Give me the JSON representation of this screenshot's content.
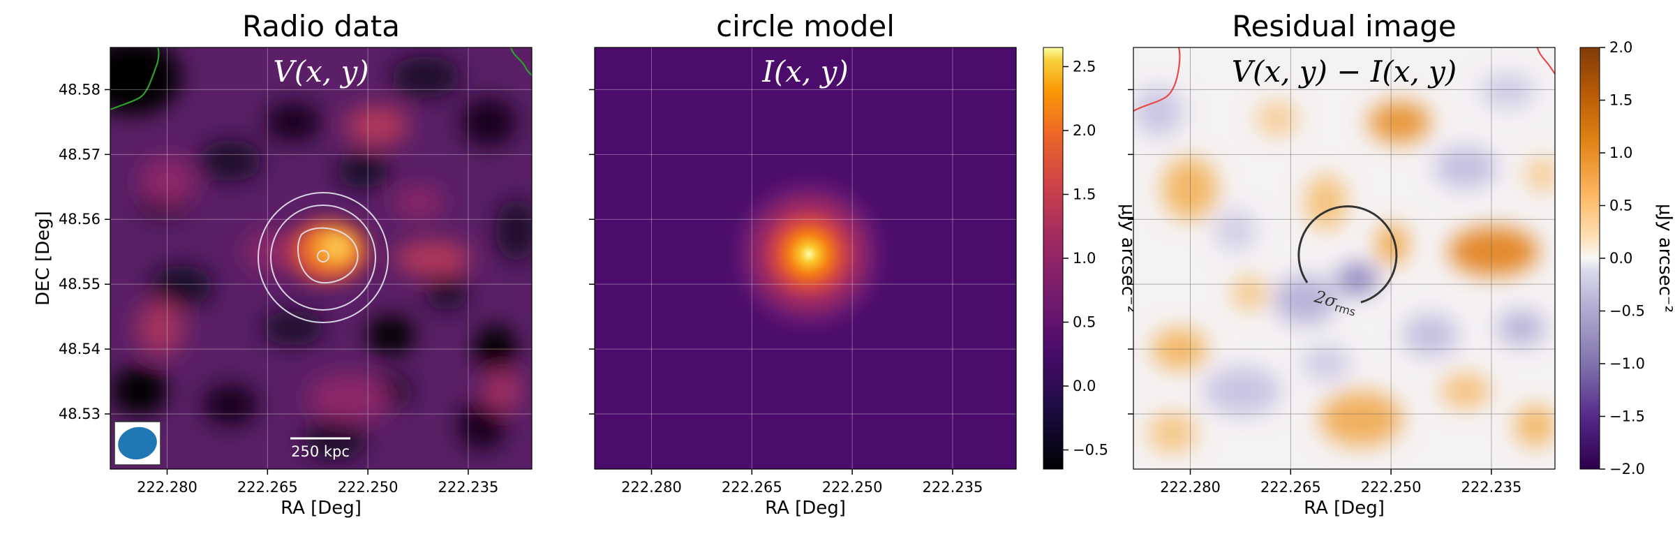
{
  "chart_data": [
    {
      "type": "heatmap",
      "title": "Radio data",
      "annotation": "V(x, y)",
      "xlabel": "RA [Deg]",
      "ylabel": "DEC [Deg]",
      "xticks": [
        "222.280",
        "222.265",
        "222.250",
        "222.235"
      ],
      "yticks": [
        "48.58",
        "48.57",
        "48.56",
        "48.55",
        "48.54",
        "48.53"
      ],
      "xlim": [
        222.2885,
        222.2255
      ],
      "ylim": [
        48.5215,
        48.5865
      ],
      "grid": true,
      "colormap": "inferno",
      "contours_count": 4,
      "beam_color": "#1f77b4",
      "scalebar_label": "250 kpc",
      "source_peak": {
        "ra": 222.2555,
        "dec": 48.5565
      }
    },
    {
      "type": "heatmap",
      "title": "circle model",
      "annotation": "I(x, y)",
      "xlabel": "RA [Deg]",
      "xticks": [
        "222.280",
        "222.265",
        "222.250",
        "222.235"
      ],
      "xlim": [
        222.2885,
        222.2255
      ],
      "ylim": [
        48.5215,
        48.5865
      ],
      "grid": true,
      "colormap": "inferno",
      "model_center": {
        "ra": 222.2575,
        "dec": 48.555
      },
      "model_peak": 2.65,
      "colorbar": {
        "label": "μJy arcsec⁻²",
        "ticks": [
          "2.5",
          "2.0",
          "1.5",
          "1.0",
          "0.5",
          "0.0",
          "−0.5"
        ],
        "range": [
          -0.65,
          2.65
        ]
      }
    },
    {
      "type": "heatmap",
      "title": "Residual image",
      "annotation": "V(x, y) − I(x, y)",
      "xlabel": "RA [Deg]",
      "xticks": [
        "222.280",
        "222.265",
        "222.250",
        "222.235"
      ],
      "xlim": [
        222.2885,
        222.2255
      ],
      "ylim": [
        48.5215,
        48.5865
      ],
      "grid": true,
      "colormap": "PuOr_r",
      "contour_label": "2σ_rms",
      "colorbar": {
        "label": "μJy arcsec⁻²",
        "ticks": [
          "2.0",
          "1.5",
          "1.0",
          "0.5",
          "0.0",
          "−0.5",
          "−1.0",
          "−1.5",
          "−2.0"
        ],
        "range": [
          -2.0,
          2.0
        ]
      }
    }
  ]
}
